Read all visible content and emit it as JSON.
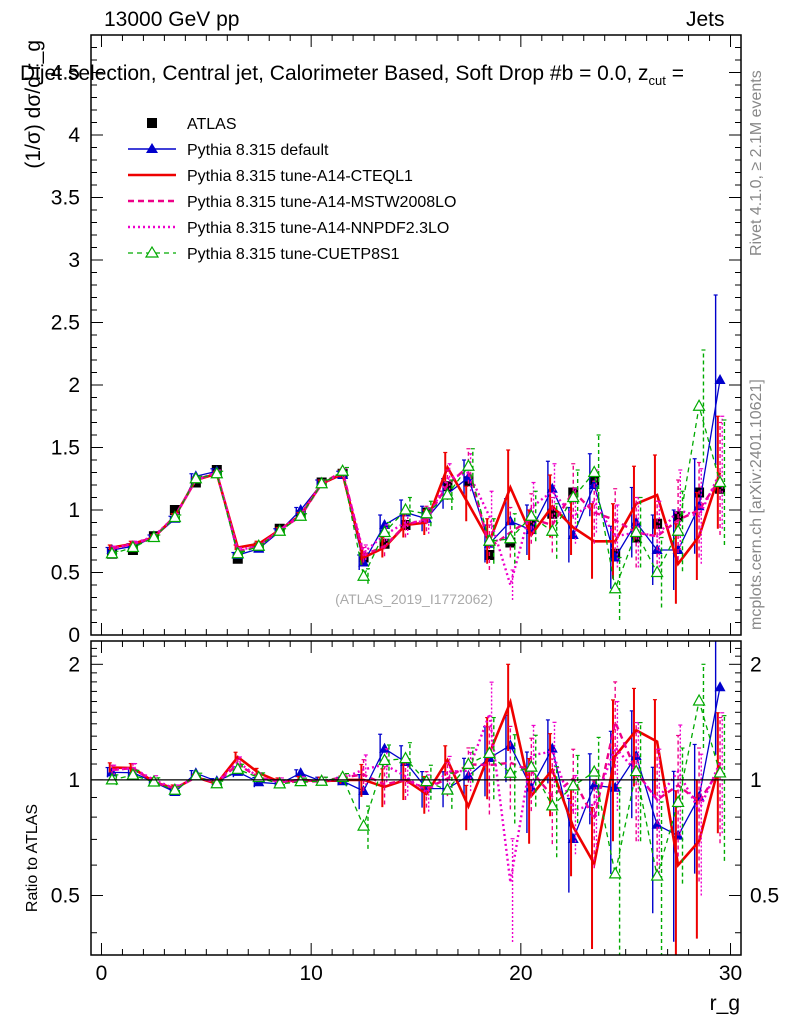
{
  "header": {
    "energy_label": "13000 GeV pp",
    "process_label": "Jets",
    "plot_title": "Dijet selection, Central jet, Calorimeter Based, Soft Drop #b = 0.0, z",
    "title_sub": "cut",
    "title_tail": " ="
  },
  "side_labels": {
    "rivet": "Rivet 4.1.0, ≥ 2.1M events",
    "mcplots": "mcplots.cern.ch [arXiv:2401.10621]"
  },
  "chart_data": {
    "type": "line",
    "title": "Dijet selection, Central jet, Calorimeter Based, Soft Drop #b = 0.0, z_cut =",
    "xlabel": "r_g",
    "ylabel": "(1/σ) dσ/d r_g",
    "ratio_ylabel": "Ratio to ATLAS",
    "analysis_label": "(ATLAS_2019_I1772062)",
    "xlim": [
      -0.5,
      30.5
    ],
    "ylim": [
      0,
      4.8
    ],
    "ratio_ylim": [
      0.35,
      2.3
    ],
    "x_ticks": [
      "0",
      "10",
      "20",
      "30"
    ],
    "y_ticks": [
      "0",
      "0.5",
      "1",
      "1.5",
      "2",
      "2.5",
      "3",
      "3.5",
      "4",
      "4.5"
    ],
    "ratio_y_ticks": [
      "0.5",
      "1",
      "2"
    ],
    "x": [
      0.5,
      1.5,
      2.5,
      3.5,
      4.5,
      5.5,
      6.5,
      7.5,
      8.5,
      9.5,
      10.5,
      11.5,
      12.5,
      13.5,
      14.5,
      15.5,
      16.5,
      17.5,
      18.5,
      19.5,
      20.5,
      21.5,
      22.5,
      23.5,
      24.5,
      25.5,
      26.5,
      27.5,
      28.5,
      29.5
    ],
    "data": {
      "name": "ATLAS",
      "values": [
        0.65,
        0.68,
        0.79,
        1.0,
        1.22,
        1.32,
        0.61,
        0.7,
        0.85,
        0.96,
        1.22,
        1.29,
        0.62,
        0.73,
        0.88,
        0.98,
        1.19,
        1.23,
        0.64,
        0.74,
        0.88,
        0.97,
        1.14,
        1.24,
        0.65,
        0.78,
        0.89,
        0.95,
        1.14,
        1.17
      ]
    },
    "series": [
      {
        "name": "Pythia 8.315 default",
        "color": "#0000cc",
        "dash": "",
        "marker": "triangle",
        "values": [
          0.68,
          0.71,
          0.78,
          0.93,
          1.27,
          1.31,
          0.64,
          0.69,
          0.83,
          1.0,
          1.21,
          1.28,
          0.58,
          0.88,
          0.98,
          0.93,
          1.13,
          1.26,
          0.73,
          0.91,
          0.84,
          1.17,
          0.8,
          1.2,
          0.62,
          0.9,
          0.68,
          0.68,
          1.03,
          2.04
        ],
        "errors": [
          0.02,
          0.02,
          0.02,
          0.02,
          0.02,
          0.02,
          0.02,
          0.02,
          0.02,
          0.02,
          0.03,
          0.03,
          0.06,
          0.08,
          0.1,
          0.1,
          0.12,
          0.14,
          0.15,
          0.18,
          0.2,
          0.22,
          0.22,
          0.25,
          0.25,
          0.28,
          0.28,
          0.32,
          0.38,
          0.68
        ]
      },
      {
        "name": "Pythia 8.315 tune-A14-CTEQL1",
        "color": "#ee0000",
        "dash": "",
        "marker": "none",
        "values": [
          0.7,
          0.73,
          0.78,
          0.95,
          1.24,
          1.29,
          0.7,
          0.73,
          0.84,
          0.96,
          1.21,
          1.29,
          0.62,
          0.7,
          0.88,
          0.9,
          1.34,
          1.05,
          0.75,
          1.18,
          0.8,
          1.03,
          0.86,
          0.75,
          0.75,
          1.05,
          1.12,
          0.57,
          0.79,
          1.3
        ],
        "errors": [
          0.02,
          0.02,
          0.02,
          0.02,
          0.02,
          0.02,
          0.02,
          0.02,
          0.02,
          0.02,
          0.03,
          0.03,
          0.06,
          0.08,
          0.1,
          0.1,
          0.12,
          0.14,
          0.18,
          0.3,
          0.2,
          0.25,
          0.22,
          0.3,
          0.3,
          0.3,
          0.32,
          0.32,
          0.35,
          0.45
        ]
      },
      {
        "name": "Pythia 8.315 tune-A14-MSTW2008LO",
        "color": "#ee0088",
        "dash": "6,4",
        "marker": "none",
        "values": [
          0.69,
          0.73,
          0.78,
          0.95,
          1.24,
          1.3,
          0.67,
          0.71,
          0.84,
          0.95,
          1.21,
          1.31,
          0.64,
          0.71,
          0.88,
          0.93,
          1.2,
          1.35,
          0.7,
          0.82,
          0.93,
          0.88,
          1.15,
          0.98,
          0.92,
          0.82,
          0.79,
          0.92,
          1.0,
          1.25
        ],
        "errors": [
          0.02,
          0.02,
          0.02,
          0.02,
          0.02,
          0.02,
          0.02,
          0.02,
          0.02,
          0.02,
          0.03,
          0.03,
          0.06,
          0.08,
          0.1,
          0.1,
          0.12,
          0.14,
          0.18,
          0.2,
          0.2,
          0.22,
          0.22,
          0.25,
          0.25,
          0.28,
          0.28,
          0.32,
          0.38,
          0.45
        ]
      },
      {
        "name": "Pythia 8.315 tune-A14-NNPDF2.3LO",
        "color": "#ee00cc",
        "dash": "2,3",
        "marker": "none",
        "values": [
          0.69,
          0.73,
          0.79,
          0.95,
          1.24,
          1.3,
          0.68,
          0.71,
          0.84,
          0.96,
          1.21,
          1.3,
          0.66,
          0.8,
          0.9,
          0.91,
          1.25,
          1.3,
          0.95,
          0.4,
          1.02,
          1.15,
          0.95,
          1.07,
          0.79,
          0.82,
          0.79,
          1.0,
          0.95,
          1.3
        ],
        "errors": [
          0.02,
          0.02,
          0.02,
          0.02,
          0.02,
          0.02,
          0.02,
          0.02,
          0.02,
          0.02,
          0.03,
          0.03,
          0.06,
          0.08,
          0.1,
          0.1,
          0.12,
          0.15,
          0.2,
          0.12,
          0.2,
          0.22,
          0.22,
          0.25,
          0.25,
          0.28,
          0.28,
          0.32,
          0.38,
          0.45
        ]
      },
      {
        "name": "Pythia 8.315 tune-CUETP8S1",
        "color": "#00aa00",
        "dash": "5,4",
        "marker": "triangle-open",
        "values": [
          0.65,
          0.7,
          0.78,
          0.94,
          1.25,
          1.29,
          0.65,
          0.71,
          0.83,
          0.95,
          1.21,
          1.31,
          0.47,
          0.82,
          1.0,
          0.97,
          1.12,
          1.35,
          0.75,
          0.77,
          0.95,
          0.83,
          1.1,
          1.3,
          0.37,
          0.82,
          0.5,
          0.83,
          1.83,
          1.22
        ],
        "errors": [
          0.02,
          0.02,
          0.02,
          0.02,
          0.02,
          0.02,
          0.02,
          0.02,
          0.02,
          0.02,
          0.03,
          0.03,
          0.06,
          0.08,
          0.1,
          0.1,
          0.12,
          0.14,
          0.18,
          0.2,
          0.2,
          0.22,
          0.22,
          0.3,
          0.25,
          0.28,
          0.28,
          0.32,
          0.45,
          0.5
        ]
      }
    ]
  }
}
